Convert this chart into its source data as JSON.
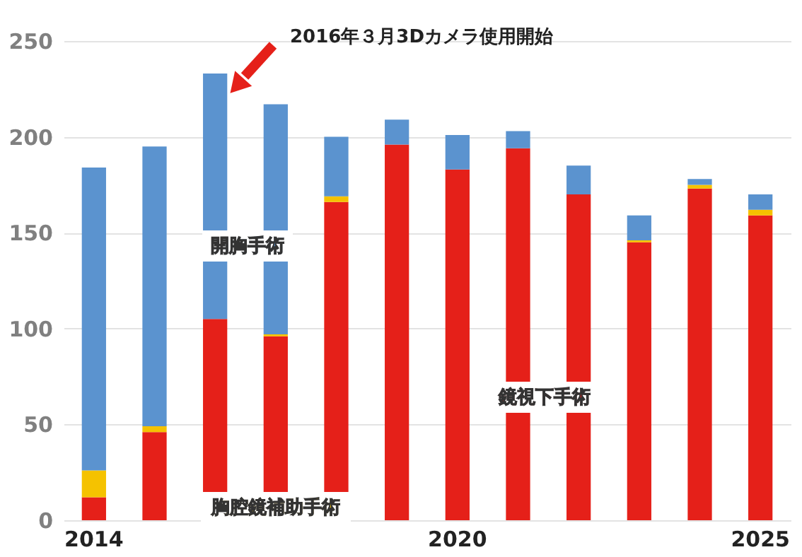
{
  "chart_data": {
    "type": "bar",
    "stacked": true,
    "categories": [
      "2014",
      null,
      null,
      null,
      null,
      null,
      "2020",
      null,
      null,
      null,
      null,
      "2025"
    ],
    "series": [
      {
        "name": "鏡視下手術",
        "color": "#e52019",
        "values": [
          12,
          46,
          105,
          96,
          166,
          196,
          183,
          194,
          170,
          145,
          173,
          159
        ]
      },
      {
        "name": "胸腔鏡補助手術",
        "color": "#f5c200",
        "values": [
          14,
          3,
          0,
          1,
          3,
          0,
          0,
          0,
          0,
          1,
          2,
          3
        ]
      },
      {
        "name": "開胸手術",
        "color": "#5b93cf",
        "values": [
          158,
          146,
          128,
          120,
          31,
          13,
          18,
          9,
          15,
          13,
          3,
          8
        ]
      }
    ],
    "ylim": [
      0,
      250
    ],
    "yticks": [
      0,
      50,
      100,
      150,
      200,
      250
    ],
    "grid": "y",
    "legend": false,
    "annotations": [
      "2016年３月3Dカメラ使用開始"
    ]
  }
}
